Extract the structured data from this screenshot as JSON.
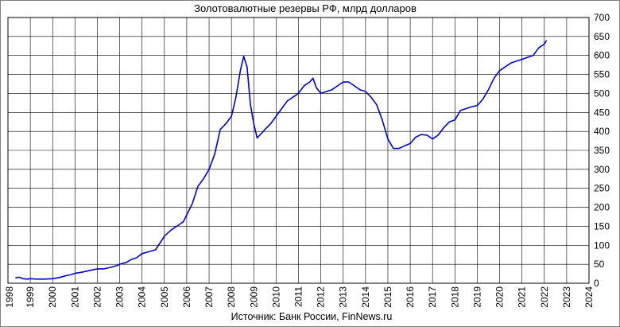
{
  "chart_data": {
    "type": "line",
    "title": "Золотовалютные резервы РФ, млрд долларов",
    "source": "Источник: Банк России, FinNews.ru",
    "xlabel": "",
    "ylabel": "",
    "xlim": [
      1998,
      2024
    ],
    "ylim": [
      0,
      700
    ],
    "x_ticks": [
      "1998",
      "1999",
      "2000",
      "2001",
      "2002",
      "2003",
      "2004",
      "2005",
      "2006",
      "2007",
      "2008",
      "2009",
      "2010",
      "2011",
      "2012",
      "2013",
      "2014",
      "2015",
      "2016",
      "2017",
      "2018",
      "2019",
      "2020",
      "2021",
      "2022",
      "2023",
      "2024"
    ],
    "y_ticks": [
      "0",
      "50",
      "100",
      "150",
      "200",
      "250",
      "300",
      "350",
      "400",
      "450",
      "500",
      "550",
      "600",
      "650",
      "700"
    ],
    "grid": true,
    "y_axis_position": "right",
    "line_color": "#0000cc",
    "series": [
      {
        "x": [
          1998.33,
          1998.5,
          1998.67,
          1998.85,
          1999.0,
          1999.3,
          1999.6,
          2000.0,
          2000.3,
          2000.6,
          2000.85,
          2001.0,
          2001.3,
          2001.6,
          2001.85,
          2002.0,
          2002.3,
          2002.6,
          2002.9,
          2003.0,
          2003.3,
          2003.5,
          2003.75,
          2004.0,
          2004.3,
          2004.6,
          2004.85,
          2005.0,
          2005.3,
          2005.6,
          2005.85,
          2006.0,
          2006.25,
          2006.5,
          2006.75,
          2007.0,
          2007.25,
          2007.5,
          2007.75,
          2008.0,
          2008.2,
          2008.4,
          2008.55,
          2008.7,
          2008.85,
          2009.0,
          2009.15,
          2009.35,
          2009.5,
          2009.75,
          2010.0,
          2010.25,
          2010.5,
          2010.75,
          2011.0,
          2011.25,
          2011.5,
          2011.65,
          2011.8,
          2012.0,
          2012.25,
          2012.5,
          2012.75,
          2013.0,
          2013.25,
          2013.5,
          2013.75,
          2014.0,
          2014.25,
          2014.5,
          2014.75,
          2015.0,
          2015.25,
          2015.5,
          2015.75,
          2016.0,
          2016.25,
          2016.5,
          2016.75,
          2017.0,
          2017.25,
          2017.5,
          2017.75,
          2018.0,
          2018.25,
          2018.5,
          2018.75,
          2019.0,
          2019.25,
          2019.5,
          2019.75,
          2020.0,
          2020.25,
          2020.5,
          2020.75,
          2021.0,
          2021.25,
          2021.5,
          2021.75,
          2022.0,
          2022.1
        ],
        "y": [
          14,
          16,
          12,
          11,
          12,
          11,
          11,
          12,
          15,
          20,
          23,
          26,
          29,
          33,
          36,
          38,
          38,
          42,
          47,
          50,
          55,
          62,
          67,
          78,
          83,
          88,
          110,
          124,
          140,
          152,
          162,
          180,
          210,
          255,
          275,
          300,
          340,
          405,
          420,
          440,
          490,
          560,
          598,
          570,
          470,
          420,
          383,
          395,
          405,
          420,
          440,
          460,
          480,
          490,
          500,
          520,
          530,
          540,
          515,
          500,
          505,
          510,
          520,
          530,
          530,
          520,
          510,
          505,
          490,
          470,
          430,
          380,
          355,
          355,
          362,
          368,
          385,
          392,
          390,
          380,
          390,
          410,
          425,
          430,
          455,
          460,
          465,
          468,
          485,
          510,
          540,
          560,
          570,
          580,
          585,
          590,
          595,
          600,
          620,
          630,
          640
        ]
      }
    ]
  }
}
